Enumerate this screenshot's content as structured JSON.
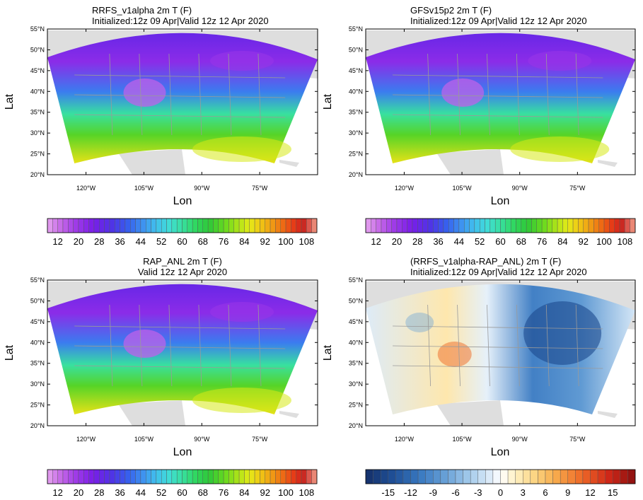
{
  "chart_data": [
    {
      "type": "heatmap",
      "title": "RRFS_v1alpha 2m T (F)",
      "subtitle": "Initialized:12z 09 Apr|Valid 12z 12 Apr 2020",
      "xlabel": "Lon",
      "ylabel": "Lat",
      "xticks": [
        "120°W",
        "105°W",
        "90°W",
        "75°W"
      ],
      "yticks": [
        "55°N",
        "50°N",
        "45°N",
        "40°N",
        "35°N",
        "30°N",
        "25°N",
        "20°N"
      ],
      "xlim": [
        -130,
        -60
      ],
      "ylim": [
        20,
        55
      ],
      "colorbar_ticks": [
        "12",
        "20",
        "28",
        "36",
        "44",
        "52",
        "60",
        "68",
        "76",
        "84",
        "92",
        "100",
        "108"
      ],
      "colorbar_range": [
        8,
        112
      ],
      "colorbar_step": 2,
      "field": "temperature"
    },
    {
      "type": "heatmap",
      "title": "GFSv15p2 2m T (F)",
      "subtitle": "Initialized:12z 09 Apr|Valid 12z 12 Apr 2020",
      "xlabel": "Lon",
      "ylabel": "Lat",
      "xticks": [
        "120°W",
        "105°W",
        "90°W",
        "75°W"
      ],
      "yticks": [
        "55°N",
        "50°N",
        "45°N",
        "40°N",
        "35°N",
        "30°N",
        "25°N",
        "20°N"
      ],
      "xlim": [
        -130,
        -60
      ],
      "ylim": [
        20,
        55
      ],
      "colorbar_ticks": [
        "12",
        "20",
        "28",
        "36",
        "44",
        "52",
        "60",
        "68",
        "76",
        "84",
        "92",
        "100",
        "108"
      ],
      "colorbar_range": [
        8,
        112
      ],
      "colorbar_step": 2,
      "field": "temperature"
    },
    {
      "type": "heatmap",
      "title": "RAP_ANL 2m T (F)",
      "subtitle": "Valid 12z 12 Apr 2020",
      "xlabel": "Lon",
      "ylabel": "Lat",
      "xticks": [
        "120°W",
        "105°W",
        "90°W",
        "75°W"
      ],
      "yticks": [
        "55°N",
        "50°N",
        "45°N",
        "40°N",
        "35°N",
        "30°N",
        "25°N",
        "20°N"
      ],
      "xlim": [
        -130,
        -60
      ],
      "ylim": [
        20,
        55
      ],
      "colorbar_ticks": [
        "12",
        "20",
        "28",
        "36",
        "44",
        "52",
        "60",
        "68",
        "76",
        "84",
        "92",
        "100",
        "108"
      ],
      "colorbar_range": [
        8,
        112
      ],
      "colorbar_step": 2,
      "field": "temperature"
    },
    {
      "type": "heatmap",
      "title": "(RRFS_v1alpha-RAP_ANL) 2m T (F)",
      "subtitle": "Initialized:12z 09 Apr|Valid 12z 12 Apr 2020",
      "xlabel": "Lon",
      "ylabel": "Lat",
      "xticks": [
        "120°W",
        "105°W",
        "90°W",
        "75°W"
      ],
      "yticks": [
        "55°N",
        "50°N",
        "45°N",
        "40°N",
        "35°N",
        "30°N",
        "25°N",
        "20°N"
      ],
      "xlim": [
        -130,
        -60
      ],
      "ylim": [
        20,
        55
      ],
      "colorbar_ticks": [
        "-15",
        "-12",
        "-9",
        "-6",
        "-3",
        "0",
        "3",
        "6",
        "9",
        "12",
        "15"
      ],
      "colorbar_range": [
        -18,
        18
      ],
      "colorbar_step": 1,
      "field": "difference"
    }
  ]
}
